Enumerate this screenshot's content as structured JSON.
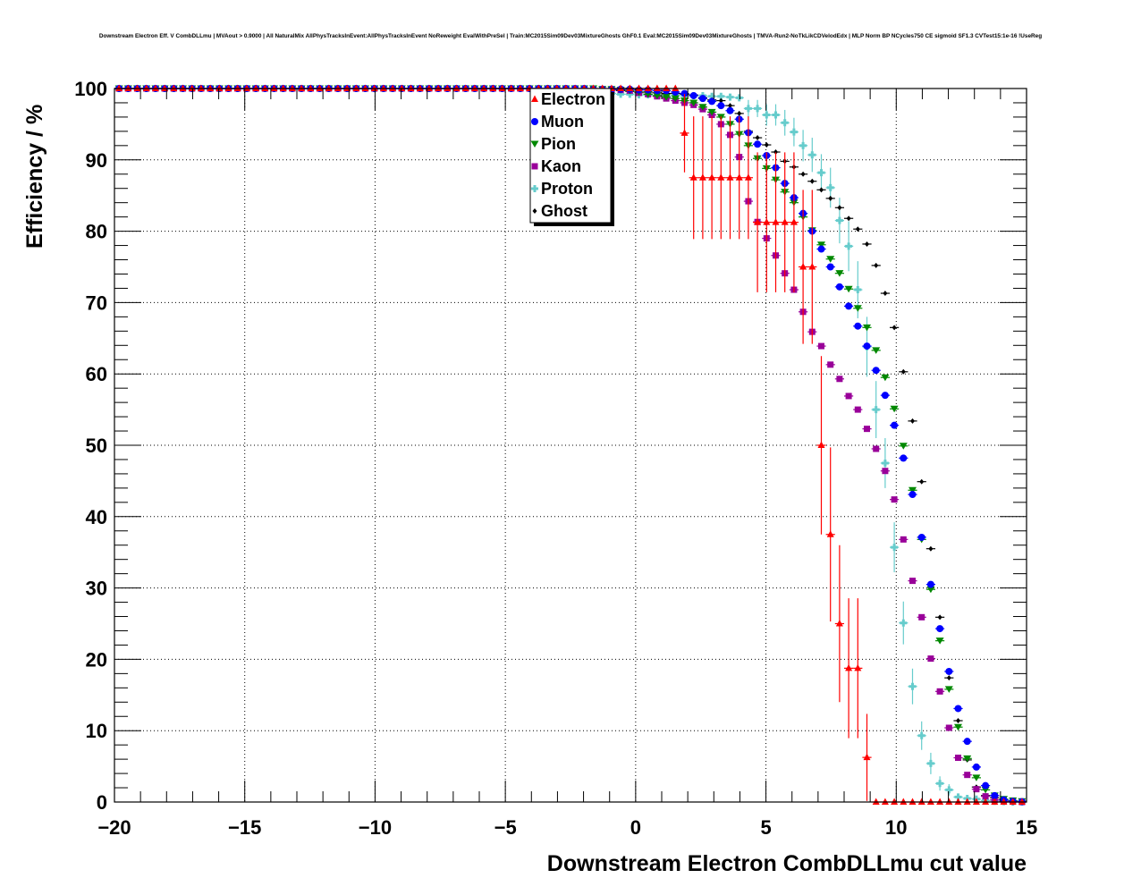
{
  "chart_data": {
    "type": "scatter",
    "title": "Downstream Electron Eff. V CombDLLmu | MVAout > 0.9000 | All NaturalMix AllPhysTracksInEvent:AllPhysTracksInEvent NoReweight EvalWithPreSel | Train:MC2015Sim09Dev03MixtureGhosts GhF0.1 Eval:MC2015Sim09Dev03MixtureGhosts | TMVA-Run2-NoTkLikCDVelodEdx | MLP Norm BP NCycles750 CE sigmoid SF1.3 CVTest15:1e-16 !UseReg",
    "xlabel": "Downstream Electron CombDLLmu cut value",
    "ylabel": "Efficiency / %",
    "xlim": [
      -20,
      15
    ],
    "ylim": [
      0,
      100
    ],
    "xticks": [
      "−20",
      "−15",
      "−10",
      "−5",
      "0",
      "5",
      "10",
      "15"
    ],
    "xtick_values": [
      -20,
      -15,
      -10,
      -5,
      0,
      5,
      10,
      15
    ],
    "yticks": [
      "0",
      "10",
      "20",
      "30",
      "40",
      "50",
      "60",
      "70",
      "80",
      "90",
      "100"
    ],
    "ytick_values": [
      0,
      10,
      20,
      30,
      40,
      50,
      60,
      70,
      80,
      90,
      100
    ],
    "grid": true,
    "legend_position": "top-center",
    "bins": {
      "start": -20,
      "width": 0.35,
      "count": 100
    },
    "plateau_value": 100,
    "series": [
      {
        "name": "Electron",
        "color": "#ff0000",
        "marker": "triangle-up",
        "first_bin": 50,
        "values": [
          100,
          100,
          100,
          100,
          100,
          100,
          100,
          100,
          100,
          100,
          100,
          100,
          93.75,
          87.5,
          87.5,
          87.5,
          87.5,
          87.5,
          87.5,
          87.5,
          81.25,
          81.25,
          81.25,
          81.25,
          81.25,
          75,
          75,
          50,
          37.5,
          25,
          18.75,
          18.75,
          6.25,
          0,
          0,
          0,
          0,
          0,
          0,
          0,
          0,
          0,
          0,
          0,
          0,
          0,
          0,
          0,
          0,
          0
        ],
        "yerr": {
          "62": 5.5,
          "63": 8.6,
          "64": 8.6,
          "65": 8.6,
          "66": 8.6,
          "67": 8.6,
          "68": 8.6,
          "69": 8.6,
          "70": 9.8,
          "71": 9.8,
          "72": 9.8,
          "73": 9.8,
          "74": 9.8,
          "75": 10.8,
          "76": 10.8,
          "77": 12.5,
          "78": 12.2,
          "79": 11,
          "80": 9.8,
          "81": 9.8,
          "82": 6.1
        }
      },
      {
        "name": "Muon",
        "color": "#0000ff",
        "marker": "circle",
        "first_bin": 50,
        "values": [
          100,
          100,
          99.9,
          99.9,
          99.9,
          99.9,
          99.9,
          99.8,
          99.8,
          99.7,
          99.7,
          99.5,
          99.3,
          99.0,
          98.6,
          98.2,
          97.6,
          96.9,
          95.7,
          93.8,
          92.2,
          90.6,
          88.9,
          86.7,
          84.7,
          82.5,
          80.0,
          77.5,
          75.0,
          72.2,
          69.5,
          66.7,
          63.9,
          60.5,
          57.0,
          52.8,
          48.2,
          43.1,
          37.1,
          30.5,
          24.3,
          18.3,
          13.1,
          8.5,
          4.9,
          2.3,
          0.9,
          0.3,
          0.1,
          0.05
        ]
      },
      {
        "name": "Pion",
        "color": "#008800",
        "marker": "triangle-down",
        "first_bin": 50,
        "values": [
          100,
          100,
          100,
          99.9,
          99.9,
          99.8,
          99.7,
          99.5,
          99.2,
          99.0,
          98.8,
          98.6,
          98.3,
          98.0,
          97.4,
          96.7,
          96.0,
          95.0,
          93.6,
          92.0,
          90.2,
          88.8,
          87.2,
          85.5,
          84.0,
          82.0,
          80.1,
          78.1,
          76.1,
          74.1,
          71.9,
          69.2,
          66.5,
          63.3,
          59.5,
          55.1,
          49.9,
          43.7,
          36.8,
          29.8,
          22.6,
          15.8,
          10.5,
          6.1,
          3.4,
          1.7,
          0.9,
          0.4,
          0.2,
          0.1
        ]
      },
      {
        "name": "Kaon",
        "color": "#990099",
        "marker": "square",
        "first_bin": 50,
        "values": [
          100,
          100,
          99.9,
          99.9,
          99.8,
          99.8,
          99.7,
          99.4,
          99.2,
          98.9,
          98.6,
          98.3,
          98.0,
          97.7,
          97.1,
          96.3,
          95.0,
          93.5,
          90.4,
          84.2,
          81.3,
          79.0,
          76.6,
          74.1,
          71.8,
          68.7,
          65.9,
          63.9,
          61.3,
          59.3,
          56.9,
          55.0,
          52.3,
          49.5,
          46.4,
          42.4,
          36.8,
          31.0,
          25.9,
          20.1,
          15.5,
          10.4,
          6.2,
          3.8,
          1.8,
          0.8,
          0.3,
          0.1,
          0.05,
          0
        ]
      },
      {
        "name": "Proton",
        "color": "#66cccc",
        "marker": "cross",
        "first_bin": 50,
        "values": [
          99.6,
          99.5,
          99.4,
          99.3,
          99.3,
          99.2,
          99.2,
          99.1,
          99.1,
          99.0,
          99.0,
          99.0,
          99.0,
          99.0,
          99.0,
          98.9,
          98.9,
          98.8,
          98.7,
          97.2,
          97.2,
          96.3,
          96.3,
          95.2,
          93.9,
          92.0,
          90.7,
          88.2,
          86.1,
          81.5,
          77.9,
          71.8,
          63.8,
          55.0,
          47.5,
          35.7,
          25.1,
          16.2,
          9.3,
          5.4,
          2.6,
          1.7,
          0.7,
          0.5,
          0.4,
          0.2,
          0.1,
          0.05,
          0,
          0
        ],
        "yerr": {
          "69": 1.2,
          "70": 1.2,
          "71": 1.5,
          "72": 1.5,
          "73": 1.8,
          "74": 2,
          "75": 2.2,
          "76": 2.4,
          "77": 2.6,
          "78": 2.8,
          "79": 3.2,
          "80": 3.5,
          "81": 4,
          "82": 4.2,
          "83": 4,
          "84": 3.5,
          "85": 3.5,
          "86": 3,
          "87": 2.5,
          "88": 2,
          "89": 1.5,
          "90": 1,
          "91": 0.8
        }
      },
      {
        "name": "Ghost",
        "color": "#000000",
        "marker": "diamond",
        "first_bin": 50,
        "values": [
          100,
          99.9,
          99.9,
          99.8,
          99.8,
          99.7,
          99.6,
          99.5,
          99.5,
          99.4,
          99.3,
          99.3,
          99.2,
          99.1,
          98.7,
          98.4,
          98.3,
          97.6,
          96.5,
          94.0,
          93.1,
          92.1,
          91.1,
          89.8,
          89.0,
          88.0,
          87.0,
          85.8,
          84.6,
          83.3,
          81.8,
          80.3,
          78.2,
          75.2,
          71.3,
          66.5,
          60.3,
          53.4,
          44.9,
          35.5,
          25.9,
          17.4,
          11.4,
          5.9,
          2.1,
          0.9,
          0.6,
          0.3,
          0.1,
          0.05
        ]
      }
    ]
  }
}
